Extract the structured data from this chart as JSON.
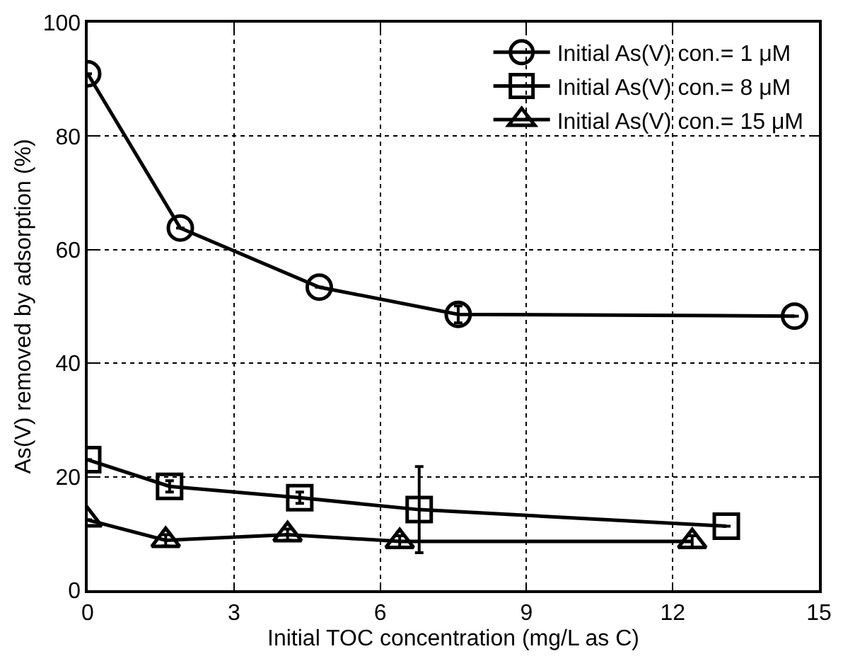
{
  "chart_data": {
    "type": "line",
    "xlabel": "Initial TOC concentration (mg/L as C)",
    "ylabel": "As(V) removed by adsorption (%)",
    "xlim": [
      0,
      15
    ],
    "xticks": [
      0,
      3,
      6,
      9,
      12,
      15
    ],
    "ylim": [
      0,
      100
    ],
    "yticks": [
      0,
      20,
      40,
      60,
      80,
      100
    ],
    "grid": true,
    "legend": "top right",
    "line_style": "solid",
    "series": [
      {
        "name": "Initial As(V) con.= 1 μM",
        "color": "#000000",
        "marker": "circle",
        "x": [
          0,
          1.9,
          4.75,
          7.6,
          14.5
        ],
        "values": [
          91,
          63.8,
          53.4,
          48.6,
          48.3
        ],
        "errors": [
          null,
          null,
          null,
          1.5,
          null
        ]
      },
      {
        "name": "Initial As(V) con.= 8 μM",
        "color": "#000000",
        "marker": "square",
        "x": [
          0,
          1.68,
          4.35,
          6.8,
          13.1
        ],
        "values": [
          23.0,
          18.3,
          16.3,
          14.2,
          11.3
        ],
        "errors": [
          null,
          1,
          1,
          7.6,
          null
        ]
      },
      {
        "name": "Initial As(V) con.= 15 μM",
        "color": "#000000",
        "marker": "triangle",
        "x": [
          0,
          1.6,
          4.1,
          6.4,
          12.4
        ],
        "values": [
          12.4,
          8.8,
          9.8,
          8.6,
          8.6
        ],
        "errors": [
          null,
          1,
          1,
          1,
          1
        ]
      }
    ]
  }
}
